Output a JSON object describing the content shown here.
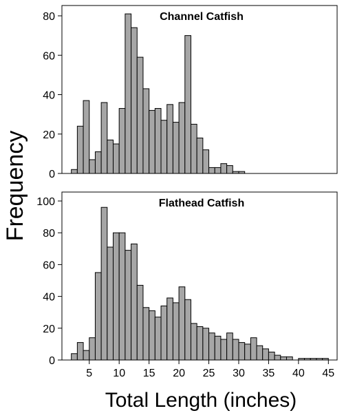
{
  "chart_data": {
    "type": "bar",
    "xlabel": "Total Length (inches)",
    "ylabel": "Frequency",
    "bin_width": 1,
    "xlim": [
      1,
      46
    ],
    "xticks": [
      5,
      10,
      15,
      20,
      25,
      30,
      35,
      40,
      45
    ],
    "panels": [
      {
        "title": "Channel Catfish",
        "ylim": [
          0,
          85
        ],
        "yticks": [
          0,
          20,
          40,
          60,
          80
        ],
        "bin_starts": [
          2,
          3,
          4,
          5,
          6,
          7,
          8,
          9,
          10,
          11,
          12,
          13,
          14,
          15,
          16,
          17,
          18,
          19,
          20,
          21,
          22,
          23,
          24,
          25,
          26,
          27,
          28,
          29,
          30
        ],
        "values": [
          2,
          24,
          37,
          7,
          11,
          36,
          17,
          15,
          33,
          81,
          74,
          59,
          43,
          32,
          33,
          27,
          35,
          26,
          36,
          70,
          25,
          18,
          12,
          3,
          3,
          5,
          4,
          1,
          1
        ]
      },
      {
        "title": "Flathead Catfish",
        "ylim": [
          0,
          104
        ],
        "yticks": [
          0,
          20,
          40,
          60,
          80,
          100
        ],
        "bin_starts": [
          2,
          3,
          4,
          5,
          6,
          7,
          8,
          9,
          10,
          11,
          12,
          13,
          14,
          15,
          16,
          17,
          18,
          19,
          20,
          21,
          22,
          23,
          24,
          25,
          26,
          27,
          28,
          29,
          30,
          31,
          32,
          33,
          34,
          35,
          36,
          37,
          38,
          39,
          40,
          41,
          42,
          43,
          44
        ],
        "values": [
          4,
          11,
          6,
          14,
          55,
          96,
          71,
          80,
          80,
          69,
          73,
          47,
          33,
          31,
          27,
          34,
          39,
          36,
          46,
          38,
          23,
          21,
          20,
          17,
          15,
          13,
          17,
          13,
          11,
          10,
          14,
          9,
          7,
          5,
          3,
          2,
          2,
          0,
          1,
          1,
          1,
          1,
          1
        ]
      }
    ]
  }
}
